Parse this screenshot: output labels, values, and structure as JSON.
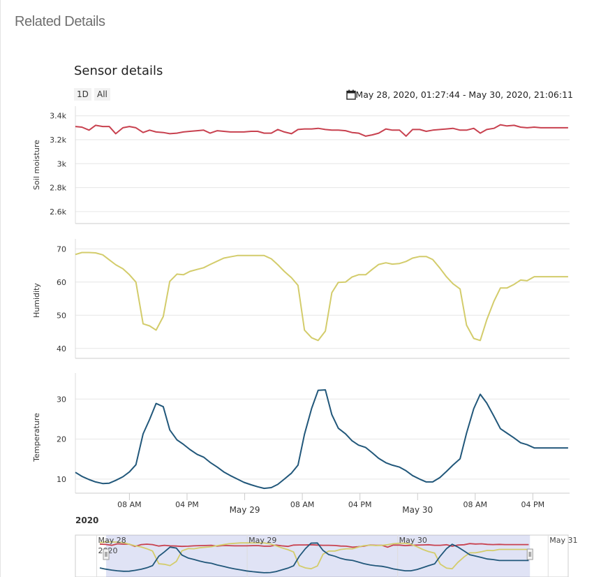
{
  "page": {
    "heading": "Related Details"
  },
  "chart": {
    "title": "Sensor details",
    "range_buttons": [
      "1D",
      "All"
    ],
    "date_range": "May 28, 2020, 01:27:44 - May 30, 2020, 21:06:11",
    "year_label": "2020"
  },
  "chart_data": {
    "type": "line",
    "x_unit": "hours since May 28, 2020 00:00",
    "x_range": [
      0.5,
      69.1
    ],
    "x_tick_labels": [
      "08 AM",
      "04 PM",
      "May 29",
      "08 AM",
      "04 PM",
      "May 30",
      "08 AM",
      "04 PM"
    ],
    "x_tick_hours": [
      8,
      16,
      24,
      32,
      40,
      48,
      56,
      64
    ],
    "grid": true,
    "panels": [
      {
        "ylabel": "Soil moisture",
        "ylim": [
          2500,
          3480
        ],
        "yticks": [
          2600,
          2800,
          3000,
          3200,
          3400
        ],
        "ytick_labels": [
          "2.6k",
          "2.8k",
          "3k",
          "3.2k",
          "3.4k"
        ],
        "color": "#c8414f",
        "x": [
          0.5,
          1.4,
          2.4,
          3.3,
          4.3,
          5.2,
          6.1,
          7.1,
          8.0,
          8.9,
          9.9,
          10.8,
          11.7,
          12.7,
          13.6,
          14.6,
          15.5,
          16.4,
          17.4,
          18.3,
          19.2,
          20.2,
          21.1,
          22.0,
          23.0,
          23.9,
          24.9,
          25.8,
          26.7,
          27.7,
          28.6,
          29.5,
          30.5,
          31.4,
          32.3,
          33.3,
          34.2,
          35.2,
          36.1,
          37.0,
          38.0,
          38.9,
          39.8,
          40.8,
          41.7,
          42.6,
          43.6,
          44.5,
          45.5,
          46.4,
          47.3,
          48.3,
          49.2,
          50.1,
          51.1,
          52.0,
          52.9,
          53.9,
          54.8,
          55.8,
          56.7,
          57.6,
          58.6,
          59.5,
          60.4,
          61.4,
          62.3,
          63.2,
          64.2,
          65.1,
          66.1,
          67.0,
          67.9,
          68.9
        ],
        "y": [
          3310,
          3305,
          3280,
          3320,
          3310,
          3310,
          3250,
          3300,
          3310,
          3300,
          3260,
          3280,
          3265,
          3260,
          3250,
          3255,
          3265,
          3270,
          3275,
          3280,
          3255,
          3275,
          3270,
          3265,
          3265,
          3265,
          3270,
          3270,
          3255,
          3255,
          3285,
          3265,
          3250,
          3285,
          3290,
          3290,
          3295,
          3285,
          3280,
          3280,
          3275,
          3260,
          3255,
          3230,
          3240,
          3255,
          3290,
          3280,
          3280,
          3230,
          3285,
          3285,
          3270,
          3280,
          3285,
          3290,
          3295,
          3280,
          3280,
          3295,
          3255,
          3285,
          3295,
          3325,
          3315,
          3320,
          3305,
          3300,
          3305,
          3300,
          3300,
          3300,
          3300,
          3300
        ]
      },
      {
        "ylabel": "Humidity",
        "ylim": [
          37,
          73
        ],
        "yticks": [
          40,
          50,
          60,
          70
        ],
        "ytick_labels": [
          "40",
          "50",
          "60",
          "70"
        ],
        "color": "#d3cc6b",
        "x": [
          0.5,
          1.4,
          2.4,
          3.3,
          4.3,
          5.2,
          6.1,
          7.1,
          8.0,
          8.9,
          9.9,
          10.8,
          11.7,
          12.7,
          13.6,
          14.6,
          15.5,
          16.4,
          17.4,
          18.3,
          19.2,
          20.2,
          21.1,
          22.0,
          23.0,
          23.9,
          24.9,
          25.8,
          26.7,
          27.7,
          28.6,
          29.5,
          30.5,
          31.4,
          32.3,
          33.3,
          34.2,
          35.2,
          36.1,
          37.0,
          38.0,
          38.9,
          39.8,
          40.8,
          41.7,
          42.6,
          43.6,
          44.5,
          45.5,
          46.4,
          47.3,
          48.3,
          49.2,
          50.1,
          51.1,
          52.0,
          52.9,
          53.9,
          54.8,
          55.8,
          56.7,
          57.6,
          58.6,
          59.5,
          60.4,
          61.4,
          62.3,
          63.2,
          64.2,
          65.1,
          66.1,
          67.0,
          67.9,
          68.9
        ],
        "y": [
          68.3,
          68.9,
          68.9,
          68.8,
          68.2,
          66.7,
          65.2,
          64.0,
          62.2,
          60.0,
          47.4,
          46.8,
          45.5,
          49.6,
          60.2,
          62.4,
          62.2,
          63.2,
          63.8,
          64.3,
          65.3,
          66.3,
          67.2,
          67.6,
          68.0,
          68.0,
          68.0,
          68.0,
          68.0,
          67.0,
          65.2,
          63.2,
          61.3,
          59.0,
          45.5,
          43.2,
          42.4,
          45.2,
          56.8,
          59.9,
          60.0,
          61.5,
          62.2,
          62.2,
          63.8,
          65.3,
          65.8,
          65.4,
          65.6,
          66.2,
          67.2,
          67.7,
          67.7,
          66.8,
          64.2,
          61.6,
          59.5,
          57.9,
          47.0,
          43.0,
          42.4,
          48.6,
          54.2,
          58.2,
          58.2,
          59.3,
          60.6,
          60.4,
          61.6,
          61.6,
          61.6,
          61.6,
          61.6,
          61.6
        ]
      },
      {
        "ylabel": "Temperature",
        "ylim": [
          6.5,
          36.5
        ],
        "yticks": [
          10,
          20,
          30
        ],
        "ytick_labels": [
          "10",
          "20",
          "30"
        ],
        "color": "#21577a",
        "x": [
          0.5,
          1.4,
          2.4,
          3.3,
          4.3,
          5.2,
          6.1,
          7.1,
          8.0,
          8.9,
          9.9,
          10.8,
          11.7,
          12.7,
          13.6,
          14.6,
          15.5,
          16.4,
          17.4,
          18.3,
          19.2,
          20.2,
          21.1,
          22.0,
          23.0,
          23.9,
          24.9,
          25.8,
          26.7,
          27.7,
          28.6,
          29.5,
          30.5,
          31.4,
          32.3,
          33.3,
          34.2,
          35.2,
          36.1,
          37.0,
          38.0,
          38.9,
          39.8,
          40.8,
          41.7,
          42.6,
          43.6,
          44.5,
          45.5,
          46.4,
          47.3,
          48.3,
          49.2,
          50.1,
          51.1,
          52.0,
          52.9,
          53.9,
          54.8,
          55.8,
          56.7,
          57.6,
          58.6,
          59.5,
          60.4,
          61.4,
          62.3,
          63.2,
          64.2,
          65.1,
          66.1,
          67.0,
          67.9,
          68.9
        ],
        "y": [
          11.7,
          10.7,
          9.9,
          9.3,
          8.9,
          9.0,
          9.7,
          10.6,
          11.8,
          13.6,
          21.3,
          24.9,
          28.9,
          28.1,
          22.3,
          19.8,
          18.7,
          17.4,
          16.2,
          15.5,
          14.2,
          13.0,
          11.8,
          10.9,
          10.0,
          9.2,
          8.6,
          8.1,
          7.7,
          7.9,
          8.7,
          10.0,
          11.5,
          13.5,
          21.2,
          27.7,
          32.2,
          32.3,
          26.1,
          22.7,
          21.3,
          19.6,
          18.5,
          17.9,
          16.6,
          15.2,
          14.1,
          13.5,
          13.0,
          12.1,
          10.9,
          10.0,
          9.3,
          9.3,
          10.4,
          11.9,
          13.5,
          15.1,
          21.5,
          27.6,
          31.2,
          29.0,
          25.7,
          22.6,
          21.5,
          20.3,
          19.1,
          18.6,
          17.8,
          17.8,
          17.8,
          17.8,
          17.8,
          17.8
        ]
      }
    ],
    "navigator": {
      "labels": [
        "May 28",
        "2020",
        "May 29",
        "May 30",
        "May 31"
      ],
      "selected_range_hours": [
        1.5,
        69.1
      ]
    }
  }
}
